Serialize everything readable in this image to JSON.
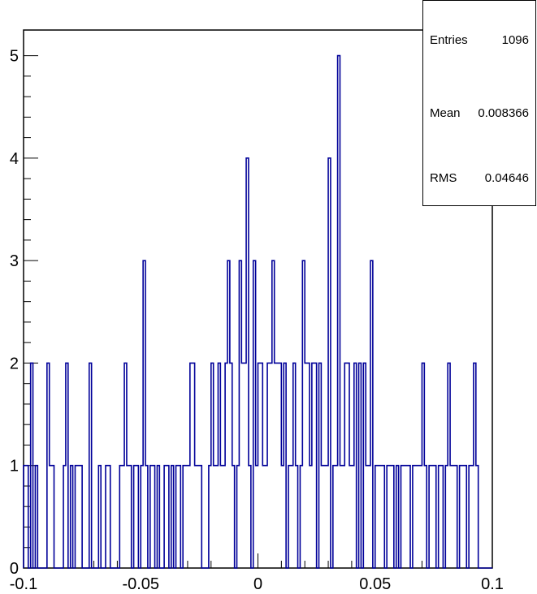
{
  "chart_data": {
    "type": "histogram",
    "title": "",
    "xlabel": "",
    "ylabel": "",
    "xlim": [
      -0.1,
      0.1
    ],
    "ylim": [
      0,
      5.25
    ],
    "bin_width": 0.001,
    "grid": false,
    "x_tick_labels": [
      "-0.1",
      "-0.05",
      "0",
      "0.05",
      "0.1"
    ],
    "x_tick_values": [
      -0.1,
      -0.05,
      0,
      0.05,
      0.1
    ],
    "y_tick_labels": [
      "0",
      "1",
      "2",
      "3",
      "4",
      "5"
    ],
    "y_tick_values": [
      0,
      1,
      2,
      3,
      4,
      5
    ],
    "line_color": "#000099",
    "bins": [
      [
        -0.1,
        1
      ],
      [
        -0.099,
        1
      ],
      [
        -0.098,
        0
      ],
      [
        -0.097,
        2
      ],
      [
        -0.096,
        0
      ],
      [
        -0.095,
        1
      ],
      [
        -0.094,
        0
      ],
      [
        -0.093,
        0
      ],
      [
        -0.092,
        0
      ],
      [
        -0.091,
        0
      ],
      [
        -0.09,
        2
      ],
      [
        -0.089,
        1
      ],
      [
        -0.088,
        1
      ],
      [
        -0.087,
        0
      ],
      [
        -0.086,
        0
      ],
      [
        -0.085,
        0
      ],
      [
        -0.084,
        0
      ],
      [
        -0.083,
        1
      ],
      [
        -0.082,
        2
      ],
      [
        -0.081,
        0
      ],
      [
        -0.08,
        1
      ],
      [
        -0.079,
        0
      ],
      [
        -0.078,
        1
      ],
      [
        -0.077,
        1
      ],
      [
        -0.076,
        1
      ],
      [
        -0.075,
        0
      ],
      [
        -0.074,
        0
      ],
      [
        -0.073,
        0
      ],
      [
        -0.072,
        2
      ],
      [
        -0.071,
        0
      ],
      [
        -0.07,
        0
      ],
      [
        -0.069,
        0
      ],
      [
        -0.068,
        1
      ],
      [
        -0.067,
        0
      ],
      [
        -0.066,
        0
      ],
      [
        -0.065,
        1
      ],
      [
        -0.064,
        1
      ],
      [
        -0.063,
        0
      ],
      [
        -0.062,
        0
      ],
      [
        -0.061,
        0
      ],
      [
        -0.06,
        0
      ],
      [
        -0.059,
        1
      ],
      [
        -0.058,
        1
      ],
      [
        -0.057,
        2
      ],
      [
        -0.056,
        1
      ],
      [
        -0.055,
        1
      ],
      [
        -0.054,
        0
      ],
      [
        -0.053,
        1
      ],
      [
        -0.052,
        1
      ],
      [
        -0.051,
        0
      ],
      [
        -0.05,
        1
      ],
      [
        -0.049,
        3
      ],
      [
        -0.048,
        1
      ],
      [
        -0.047,
        0
      ],
      [
        -0.046,
        1
      ],
      [
        -0.045,
        1
      ],
      [
        -0.044,
        0
      ],
      [
        -0.043,
        1
      ],
      [
        -0.042,
        0
      ],
      [
        -0.041,
        0
      ],
      [
        -0.04,
        1
      ],
      [
        -0.039,
        1
      ],
      [
        -0.038,
        0
      ],
      [
        -0.037,
        1
      ],
      [
        -0.036,
        0
      ],
      [
        -0.035,
        1
      ],
      [
        -0.034,
        1
      ],
      [
        -0.033,
        0
      ],
      [
        -0.032,
        1
      ],
      [
        -0.031,
        1
      ],
      [
        -0.03,
        1
      ],
      [
        -0.029,
        2
      ],
      [
        -0.028,
        2
      ],
      [
        -0.027,
        1
      ],
      [
        -0.026,
        1
      ],
      [
        -0.025,
        1
      ],
      [
        -0.024,
        0
      ],
      [
        -0.023,
        0
      ],
      [
        -0.022,
        0
      ],
      [
        -0.021,
        1
      ],
      [
        -0.02,
        2
      ],
      [
        -0.019,
        1
      ],
      [
        -0.018,
        1
      ],
      [
        -0.017,
        2
      ],
      [
        -0.016,
        1
      ],
      [
        -0.015,
        1
      ],
      [
        -0.014,
        2
      ],
      [
        -0.013,
        3
      ],
      [
        -0.012,
        2
      ],
      [
        -0.011,
        1
      ],
      [
        -0.01,
        0
      ],
      [
        -0.009,
        1
      ],
      [
        -0.008,
        3
      ],
      [
        -0.007,
        2
      ],
      [
        -0.006,
        2
      ],
      [
        -0.005,
        4
      ],
      [
        -0.004,
        1
      ],
      [
        -0.003,
        0
      ],
      [
        -0.002,
        3
      ],
      [
        -0.001,
        1
      ],
      [
        0.0,
        2
      ],
      [
        0.001,
        2
      ],
      [
        0.002,
        1
      ],
      [
        0.003,
        1
      ],
      [
        0.004,
        2
      ],
      [
        0.005,
        2
      ],
      [
        0.006,
        3
      ],
      [
        0.007,
        2
      ],
      [
        0.008,
        2
      ],
      [
        0.009,
        2
      ],
      [
        0.01,
        1
      ],
      [
        0.011,
        2
      ],
      [
        0.012,
        0
      ],
      [
        0.013,
        1
      ],
      [
        0.014,
        1
      ],
      [
        0.015,
        2
      ],
      [
        0.016,
        1
      ],
      [
        0.017,
        0
      ],
      [
        0.018,
        1
      ],
      [
        0.019,
        3
      ],
      [
        0.02,
        2
      ],
      [
        0.021,
        2
      ],
      [
        0.022,
        1
      ],
      [
        0.023,
        2
      ],
      [
        0.024,
        2
      ],
      [
        0.025,
        0
      ],
      [
        0.026,
        2
      ],
      [
        0.027,
        1
      ],
      [
        0.028,
        1
      ],
      [
        0.029,
        1
      ],
      [
        0.03,
        4
      ],
      [
        0.031,
        0
      ],
      [
        0.032,
        1
      ],
      [
        0.033,
        1
      ],
      [
        0.034,
        5
      ],
      [
        0.035,
        1
      ],
      [
        0.036,
        1
      ],
      [
        0.037,
        2
      ],
      [
        0.038,
        2
      ],
      [
        0.039,
        1
      ],
      [
        0.04,
        1
      ],
      [
        0.041,
        2
      ],
      [
        0.042,
        0
      ],
      [
        0.043,
        2
      ],
      [
        0.044,
        0
      ],
      [
        0.045,
        2
      ],
      [
        0.046,
        1
      ],
      [
        0.047,
        1
      ],
      [
        0.048,
        3
      ],
      [
        0.049,
        0
      ],
      [
        0.05,
        1
      ],
      [
        0.051,
        1
      ],
      [
        0.052,
        1
      ],
      [
        0.053,
        1
      ],
      [
        0.054,
        0
      ],
      [
        0.055,
        1
      ],
      [
        0.056,
        1
      ],
      [
        0.057,
        1
      ],
      [
        0.058,
        0
      ],
      [
        0.059,
        1
      ],
      [
        0.06,
        0
      ],
      [
        0.061,
        1
      ],
      [
        0.062,
        1
      ],
      [
        0.063,
        1
      ],
      [
        0.064,
        1
      ],
      [
        0.065,
        0
      ],
      [
        0.066,
        1
      ],
      [
        0.067,
        1
      ],
      [
        0.068,
        1
      ],
      [
        0.069,
        1
      ],
      [
        0.07,
        2
      ],
      [
        0.071,
        1
      ],
      [
        0.072,
        0
      ],
      [
        0.073,
        1
      ],
      [
        0.074,
        1
      ],
      [
        0.075,
        1
      ],
      [
        0.076,
        0
      ],
      [
        0.077,
        1
      ],
      [
        0.078,
        1
      ],
      [
        0.079,
        0
      ],
      [
        0.08,
        1
      ],
      [
        0.081,
        2
      ],
      [
        0.082,
        1
      ],
      [
        0.083,
        1
      ],
      [
        0.084,
        1
      ],
      [
        0.085,
        0
      ],
      [
        0.086,
        1
      ],
      [
        0.087,
        1
      ],
      [
        0.088,
        1
      ],
      [
        0.089,
        0
      ],
      [
        0.09,
        1
      ],
      [
        0.091,
        1
      ],
      [
        0.092,
        2
      ],
      [
        0.093,
        1
      ],
      [
        0.094,
        0
      ],
      [
        0.095,
        0
      ],
      [
        0.096,
        0
      ],
      [
        0.097,
        0
      ],
      [
        0.098,
        0
      ],
      [
        0.099,
        0
      ]
    ]
  },
  "stats": {
    "entries_label": "Entries",
    "entries_value": "1096",
    "mean_label": "Mean",
    "mean_value": "0.008366",
    "rms_label": "RMS",
    "rms_value": "0.04646"
  }
}
